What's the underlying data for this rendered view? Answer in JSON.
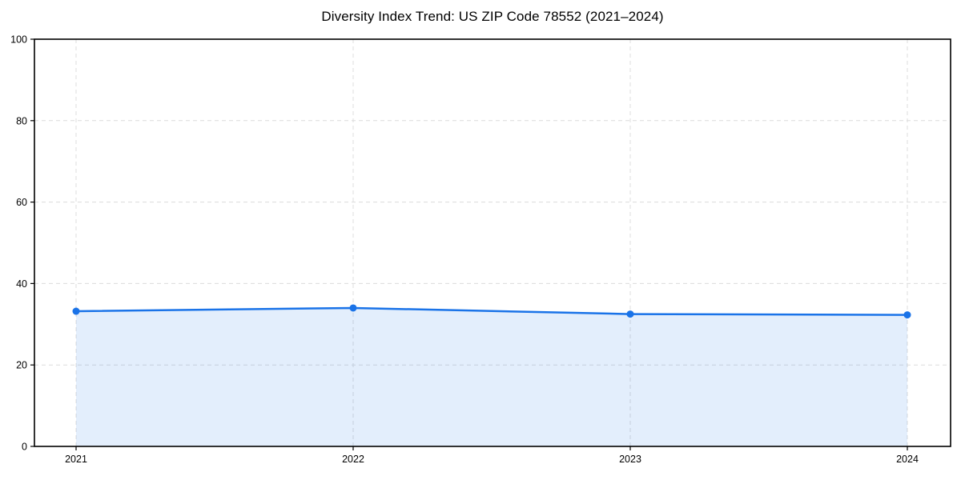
{
  "chart_data": {
    "type": "area",
    "title": "Diversity Index Trend: US ZIP Code 78552 (2021–2024)",
    "categories": [
      "2021",
      "2022",
      "2023",
      "2024"
    ],
    "values": [
      33.2,
      34,
      32.5,
      32.3
    ],
    "xlabel": "",
    "ylabel": "",
    "ylim": [
      0,
      100
    ],
    "yticks": [
      0,
      20,
      40,
      60,
      80,
      100
    ],
    "grid": "dashed-both-directions",
    "legend": "none",
    "marker": "circle",
    "colors": {
      "line": "#1a73e8",
      "marker": "#1a73e8",
      "fill_rgba": "rgba(26,115,232,0.12)",
      "grid": "#dcdcdc",
      "axis_box": "#000000",
      "tick_text": "#000000",
      "background": "#ffffff"
    }
  }
}
